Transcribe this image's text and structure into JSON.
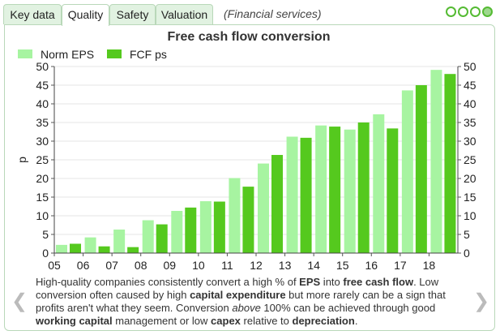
{
  "tabs": [
    "Key data",
    "Quality",
    "Safety",
    "Valuation"
  ],
  "active_tab": 1,
  "sector": "(Financial services)",
  "colors": {
    "norm_eps": "#a7f4a1",
    "fcf_ps": "#55c91e",
    "tab_bg": "#e1f2e1",
    "border": "#b9d8b9"
  },
  "chart_data": {
    "type": "bar",
    "title": "Free cash flow conversion",
    "ylabel": "p",
    "ylim": [
      0,
      50
    ],
    "yticks": [
      0,
      5,
      10,
      15,
      20,
      25,
      30,
      35,
      40,
      45,
      50
    ],
    "categories": [
      "05",
      "06",
      "07",
      "08",
      "09",
      "10",
      "11",
      "12",
      "13",
      "14",
      "15",
      "16",
      "17",
      "18"
    ],
    "series": [
      {
        "name": "Norm EPS",
        "values": [
          2.2,
          4.2,
          6.3,
          8.8,
          11.3,
          13.9,
          20.1,
          24.0,
          31.2,
          34.2,
          33.1,
          37.2,
          43.6,
          49.1
        ]
      },
      {
        "name": "FCF ps",
        "values": [
          2.5,
          1.8,
          1.6,
          7.7,
          12.2,
          13.8,
          17.8,
          26.3,
          30.9,
          33.9,
          35.0,
          33.4,
          45.0,
          48.0
        ]
      }
    ],
    "legend_position": "top-left"
  },
  "description": {
    "t1": "High-quality companies consistently convert a high % of ",
    "b1": "EPS",
    "t2": " into ",
    "b2": "free cash flow",
    "t3": ". Low conversion often caused by high ",
    "b3": "capital expenditure",
    "t4": " but more rarely can be a sign that profits aren't what they seem. Conversion ",
    "i1": "above",
    "t5": " 100% can be achieved through good ",
    "b4": "working capital",
    "t6": " management or low ",
    "b5": "capex",
    "t7": " relative to ",
    "b6": "depreciation",
    "t8": "."
  },
  "nav": {
    "prev": "❮",
    "next": "❯"
  }
}
